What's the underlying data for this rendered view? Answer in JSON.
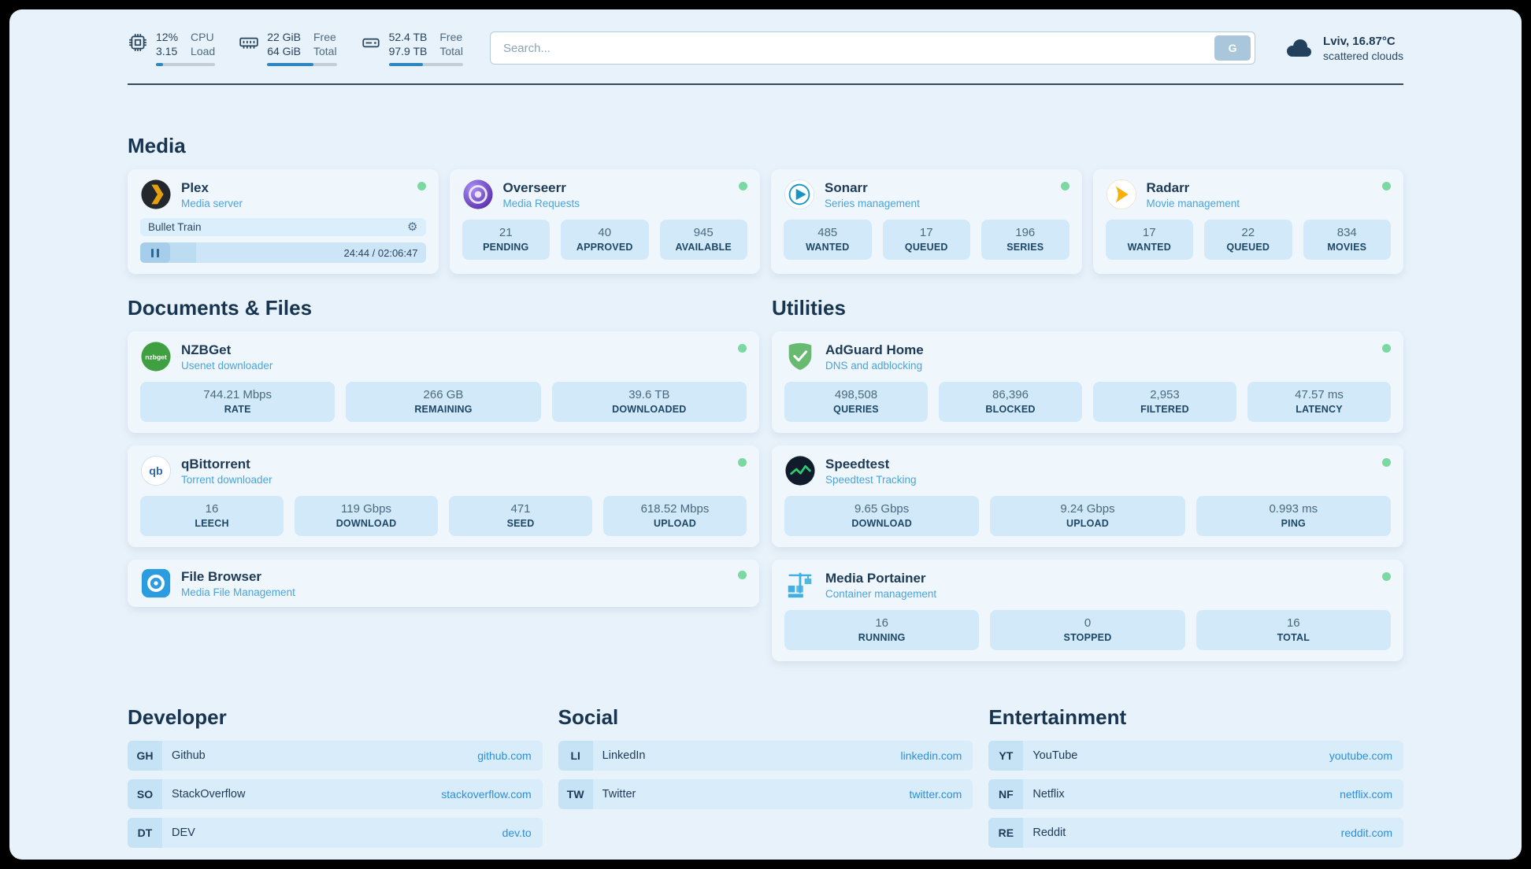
{
  "header": {
    "cpu": {
      "value_top": "12%",
      "value_bottom": "3.15",
      "label_top": "CPU",
      "label_bottom": "Load",
      "progress": 12
    },
    "ram": {
      "value_top": "22 GiB",
      "value_bottom": "64 GiB",
      "label_top": "Free",
      "label_bottom": "Total",
      "progress": 66
    },
    "disk": {
      "value_top": "52.4 TB",
      "value_bottom": "97.9 TB",
      "label_top": "Free",
      "label_bottom": "Total",
      "progress": 46
    },
    "search": {
      "placeholder": "Search...",
      "button_label": "G"
    },
    "weather": {
      "location_temp": "Lviv, 16.87°C",
      "condition": "scattered clouds"
    }
  },
  "media": {
    "title": "Media",
    "plex": {
      "name": "Plex",
      "subtitle": "Media server",
      "now_playing_title": "Bullet Train",
      "time": "24:44 / 02:06:47",
      "progress": 19.5
    },
    "apps": [
      {
        "name": "Overseerr",
        "subtitle": "Media Requests",
        "stats": [
          {
            "value": "21",
            "label": "PENDING"
          },
          {
            "value": "40",
            "label": "APPROVED"
          },
          {
            "value": "945",
            "label": "AVAILABLE"
          }
        ]
      },
      {
        "name": "Sonarr",
        "subtitle": "Series management",
        "stats": [
          {
            "value": "485",
            "label": "WANTED"
          },
          {
            "value": "17",
            "label": "QUEUED"
          },
          {
            "value": "196",
            "label": "SERIES"
          }
        ]
      },
      {
        "name": "Radarr",
        "subtitle": "Movie management",
        "stats": [
          {
            "value": "17",
            "label": "WANTED"
          },
          {
            "value": "22",
            "label": "QUEUED"
          },
          {
            "value": "834",
            "label": "MOVIES"
          }
        ]
      }
    ]
  },
  "documents": {
    "title": "Documents & Files",
    "apps": [
      {
        "name": "NZBGet",
        "subtitle": "Usenet downloader",
        "stats": [
          {
            "value": "744.21 Mbps",
            "label": "RATE"
          },
          {
            "value": "266 GB",
            "label": "REMAINING"
          },
          {
            "value": "39.6 TB",
            "label": "DOWNLOADED"
          }
        ]
      },
      {
        "name": "qBittorrent",
        "subtitle": "Torrent downloader",
        "stats": [
          {
            "value": "16",
            "label": "LEECH"
          },
          {
            "value": "119 Gbps",
            "label": "DOWNLOAD"
          },
          {
            "value": "471",
            "label": "SEED"
          },
          {
            "value": "618.52 Mbps",
            "label": "UPLOAD"
          }
        ]
      },
      {
        "name": "File Browser",
        "subtitle": "Media File Management",
        "stats": []
      }
    ]
  },
  "utilities": {
    "title": "Utilities",
    "apps": [
      {
        "name": "AdGuard Home",
        "subtitle": "DNS and adblocking",
        "stats": [
          {
            "value": "498,508",
            "label": "QUERIES"
          },
          {
            "value": "86,396",
            "label": "BLOCKED"
          },
          {
            "value": "2,953",
            "label": "FILTERED"
          },
          {
            "value": "47.57 ms",
            "label": "LATENCY"
          }
        ]
      },
      {
        "name": "Speedtest",
        "subtitle": "Speedtest Tracking",
        "stats": [
          {
            "value": "9.65 Gbps",
            "label": "DOWNLOAD"
          },
          {
            "value": "9.24 Gbps",
            "label": "UPLOAD"
          },
          {
            "value": "0.993 ms",
            "label": "PING"
          }
        ]
      },
      {
        "name": "Media Portainer",
        "subtitle": "Container management",
        "stats": [
          {
            "value": "16",
            "label": "RUNNING"
          },
          {
            "value": "0",
            "label": "STOPPED"
          },
          {
            "value": "16",
            "label": "TOTAL"
          }
        ]
      }
    ]
  },
  "bookmarks": [
    {
      "title": "Developer",
      "links": [
        {
          "abbr": "GH",
          "name": "Github",
          "url": "github.com"
        },
        {
          "abbr": "SO",
          "name": "StackOverflow",
          "url": "stackoverflow.com"
        },
        {
          "abbr": "DT",
          "name": "DEV",
          "url": "dev.to"
        }
      ]
    },
    {
      "title": "Social",
      "links": [
        {
          "abbr": "LI",
          "name": "LinkedIn",
          "url": "linkedin.com"
        },
        {
          "abbr": "TW",
          "name": "Twitter",
          "url": "twitter.com"
        }
      ]
    },
    {
      "title": "Entertainment",
      "links": [
        {
          "abbr": "YT",
          "name": "YouTube",
          "url": "youtube.com"
        },
        {
          "abbr": "NF",
          "name": "Netflix",
          "url": "netflix.com"
        },
        {
          "abbr": "RE",
          "name": "Reddit",
          "url": "reddit.com"
        }
      ]
    }
  ],
  "colors": {
    "accent_blue": "#2e86c1",
    "status_online": "#7bd8a0",
    "link": "#2e8fd8",
    "page_background": "#e8f2fa"
  }
}
